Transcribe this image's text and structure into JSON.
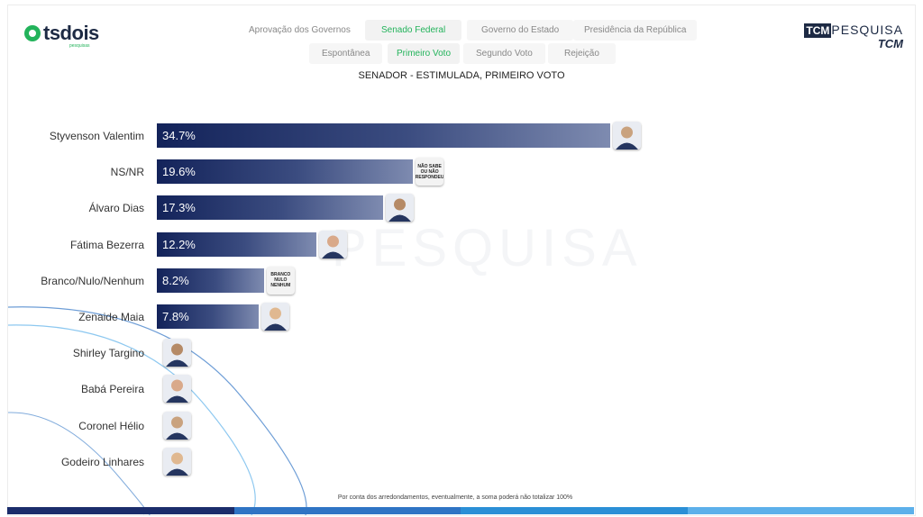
{
  "branding": {
    "left_logo": "tsdois",
    "left_logo_sub": "pesquisas",
    "right_logo_tcm": "TCM",
    "right_logo_pesquisa": "PESQUISA",
    "right_logo_tcm2": "TCM"
  },
  "watermark": "PESQUISA",
  "tabs_row1": [
    {
      "label": "Aprovação dos Governos",
      "active": false
    },
    {
      "label": "Senado Federal",
      "active": true
    },
    {
      "label": "Governo do Estado",
      "active": false
    },
    {
      "label": "Presidência da República",
      "active": false
    }
  ],
  "tabs_row2": [
    {
      "label": "Espontânea",
      "active": false
    },
    {
      "label": "Primeiro Voto",
      "active": true
    },
    {
      "label": "Segundo Voto",
      "active": false
    },
    {
      "label": "Rejeição",
      "active": false
    }
  ],
  "chart_data": {
    "type": "bar",
    "orientation": "horizontal",
    "title": "SENADOR - ESTIMULADA, PRIMEIRO VOTO",
    "categories": [
      "Styvenson Valentim",
      "NS/NR",
      "Álvaro Dias",
      "Fátima Bezerra",
      "Branco/Nulo/Nenhum",
      "Zenaide Maia",
      "Shirley Targino",
      "Babá Pereira",
      "Coronel Hélio",
      "Godeiro Linhares"
    ],
    "values": [
      34.7,
      19.6,
      17.3,
      12.2,
      8.2,
      7.8,
      null,
      null,
      null,
      null
    ],
    "value_labels": [
      "34.7%",
      "19.6%",
      "17.3%",
      "12.2%",
      "8.2%",
      "7.8%",
      "",
      "",
      "",
      ""
    ],
    "xlim": [
      0,
      34.7
    ],
    "grid": false,
    "legend": "none"
  },
  "thumb_texts": {
    "NS/NR": "NÃO SABE OU NÃO RESPONDEU",
    "Branco/Nulo/Nenhum": "BRANCO NULO NENHUM"
  },
  "colors": {
    "bar_start": "#13235a",
    "bar_end": "#7e8bb0",
    "accent_green": "#23b35b",
    "band": [
      "#1b2d6b",
      "#2f74c4",
      "#2b8fd6",
      "#5cb0ea"
    ]
  },
  "footnote": "Por conta dos arredondamentos, eventualmente, a soma poderá não totalizar 100%"
}
